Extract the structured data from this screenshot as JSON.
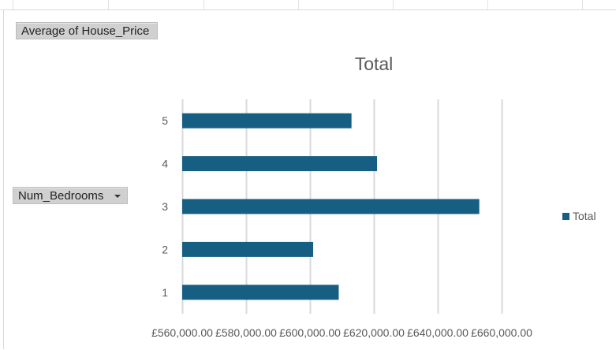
{
  "pivot_fields": {
    "values_field": "Average of House_Price",
    "rows_field": "Num_Bedrooms"
  },
  "colors": {
    "bar": "#175f82",
    "gridline": "#d9d9d9",
    "text": "#595959"
  },
  "icons": {
    "rows_dropdown": "dropdown-arrow-icon",
    "legend": "legend-swatch-icon"
  },
  "chart_data": {
    "type": "bar",
    "orientation": "horizontal",
    "title": "Total",
    "xlabel": "",
    "ylabel": "",
    "categories": [
      "1",
      "2",
      "3",
      "4",
      "5"
    ],
    "series": [
      {
        "name": "Total",
        "values": [
          609000,
          601000,
          653000,
          621000,
          613000
        ]
      }
    ],
    "xlim": [
      560000,
      660000
    ],
    "x_ticks": [
      560000,
      580000,
      600000,
      620000,
      640000,
      660000
    ],
    "x_tick_labels": [
      "£560,000.00",
      "£580,000.00",
      "£600,000.00",
      "£620,000.00",
      "£640,000.00",
      "£660,000.00"
    ],
    "grid": true,
    "legend_position": "right"
  }
}
